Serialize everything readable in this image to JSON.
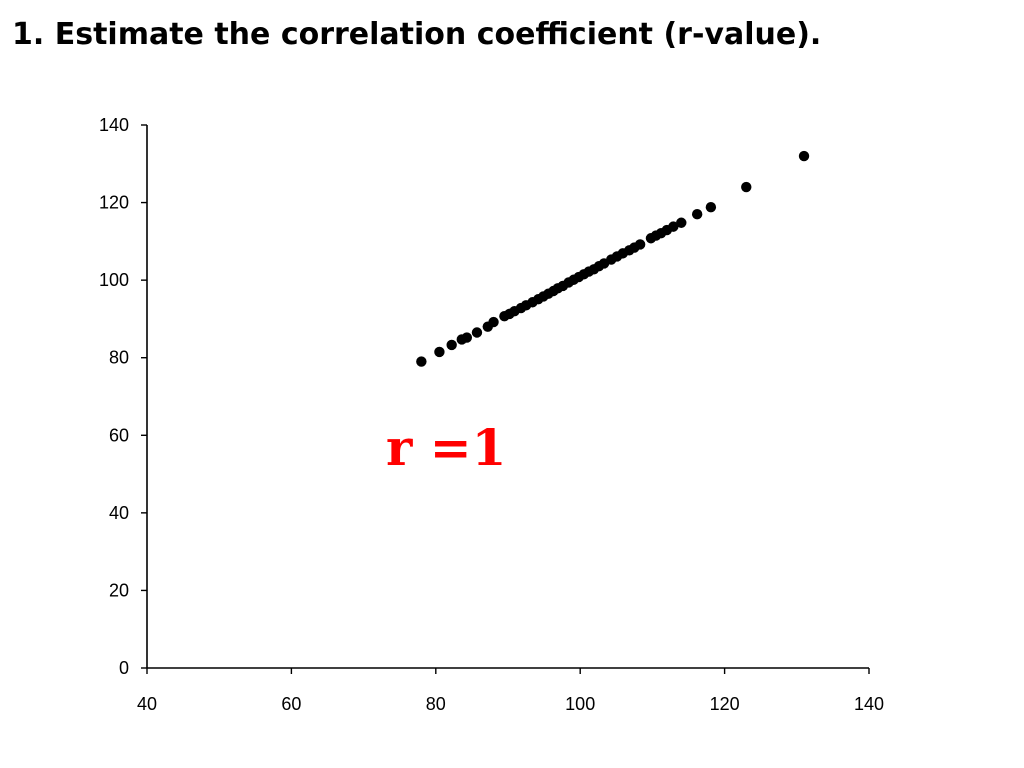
{
  "title": "1. Estimate the correlation coefficient (r-value).",
  "annotation": {
    "text": "r =1",
    "color": "#ff0000"
  },
  "chart_data": {
    "type": "scatter",
    "title": "",
    "xlabel": "",
    "ylabel": "",
    "xlim": [
      40,
      140
    ],
    "ylim": [
      0,
      140
    ],
    "xticks": [
      40,
      60,
      80,
      100,
      120,
      140
    ],
    "yticks": [
      0,
      20,
      40,
      60,
      80,
      100,
      120,
      140
    ],
    "grid": false,
    "legend": "none",
    "marker_color": "#000000",
    "series": [
      {
        "points": [
          [
            78,
            79
          ],
          [
            80.5,
            81.5
          ],
          [
            82.2,
            83.3
          ],
          [
            83.6,
            84.7
          ],
          [
            84.3,
            85.2
          ],
          [
            85.7,
            86.5
          ],
          [
            87.2,
            88
          ],
          [
            88,
            89.2
          ],
          [
            89.5,
            90.7
          ],
          [
            90.2,
            91.3
          ],
          [
            90.9,
            92
          ],
          [
            91.8,
            92.8
          ],
          [
            92.5,
            93.5
          ],
          [
            93.4,
            94.3
          ],
          [
            94.2,
            95.1
          ],
          [
            94.9,
            95.8
          ],
          [
            95.6,
            96.5
          ],
          [
            96.3,
            97.2
          ],
          [
            96.9,
            97.9
          ],
          [
            97.6,
            98.5
          ],
          [
            98.4,
            99.4
          ],
          [
            99.1,
            100.1
          ],
          [
            99.8,
            100.8
          ],
          [
            100.5,
            101.5
          ],
          [
            101.2,
            102.2
          ],
          [
            101.9,
            102.8
          ],
          [
            102.6,
            103.6
          ],
          [
            103.3,
            104.3
          ],
          [
            104.3,
            105.3
          ],
          [
            105.1,
            106.1
          ],
          [
            105.9,
            106.9
          ],
          [
            106.8,
            107.7
          ],
          [
            107.5,
            108.4
          ],
          [
            108.3,
            109.2
          ],
          [
            109.8,
            110.8
          ],
          [
            110.5,
            111.5
          ],
          [
            111.2,
            112.1
          ],
          [
            112,
            112.9
          ],
          [
            112.9,
            113.8
          ],
          [
            114,
            114.8
          ],
          [
            116.2,
            117
          ],
          [
            118.1,
            118.8
          ],
          [
            123,
            124
          ],
          [
            131,
            132
          ]
        ]
      }
    ]
  }
}
